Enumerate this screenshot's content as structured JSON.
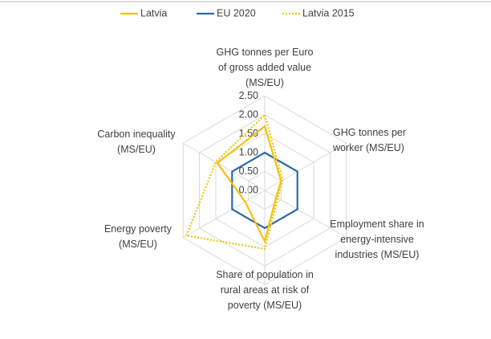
{
  "chart_data": {
    "type": "radar",
    "categories": [
      "GHG tonnes per Euro\nof gross added value\n(MS/EU)",
      "GHG tonnes per\nworker (MS/EU)",
      "Employment share in\nenergy-intensive\nindustries (MS/EU)",
      "Share of population in\nrural areas at risk of\npoverty (MS/EU)",
      "Energy poverty\n(MS/EU)",
      "Carbon inequality\n(MS/EU)"
    ],
    "series": [
      {
        "name": "Latvia",
        "color": "#f4c20d",
        "style": "solid",
        "values": [
          1.7,
          0.5,
          0.35,
          1.35,
          0.6,
          1.45
        ]
      },
      {
        "name": "EU 2020",
        "color": "#2e6aa8",
        "style": "solid",
        "values": [
          1,
          1,
          1,
          1,
          1,
          1
        ]
      },
      {
        "name": "Latvia 2015",
        "color": "#f4c20d",
        "style": "dotted",
        "values": [
          2.0,
          0.55,
          0.4,
          1.55,
          2.4,
          1.5
        ]
      }
    ],
    "rlim": [
      0,
      2.5
    ],
    "rticks": [
      {
        "value": 0,
        "label": "0.00"
      },
      {
        "value": 0.5,
        "label": "0.50"
      },
      {
        "value": 1,
        "label": "1.00"
      },
      {
        "value": 1.5,
        "label": "1.50"
      },
      {
        "value": 2,
        "label": "2.00"
      },
      {
        "value": 2.5,
        "label": "2.50"
      }
    ],
    "grid": true,
    "legend": "top"
  }
}
